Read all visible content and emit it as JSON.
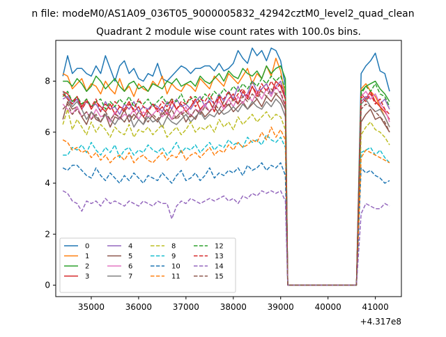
{
  "figure": {
    "suptitle": "n file: modeM0/AS1A09_036T05_9000005832_42942cztM0_level2_quad_clean",
    "title": "Quadrant 2 module wise count rates with 100.0s bins.",
    "x_offset_label": "+4.317e8"
  },
  "chart_data": {
    "type": "line",
    "title": "Quadrant 2 module wise count rates with 100.0s bins.",
    "xlabel": "",
    "ylabel": "",
    "x_offset": 431700000,
    "xlim": [
      34250,
      41550
    ],
    "ylim": [
      -0.45,
      9.6
    ],
    "xticks": [
      35000,
      36000,
      37000,
      38000,
      39000,
      40000,
      41000
    ],
    "xtick_labels": [
      "35000",
      "36000",
      "37000",
      "38000",
      "39000",
      "40000",
      "41000"
    ],
    "yticks": [
      0,
      2,
      4,
      6,
      8
    ],
    "ytick_labels": [
      "0",
      "2",
      "4",
      "6",
      "8"
    ],
    "grid": false,
    "legend_placement": "lower-left",
    "legend_columns": 4,
    "x_start": 34400,
    "x_step": 100,
    "gap_start": 39150,
    "gap_end": 40600,
    "series": [
      {
        "name": "0",
        "color": "#1f77b4",
        "dash": "solid",
        "values": [
          8.2,
          9.0,
          8.3,
          8.5,
          8.5,
          8.3,
          8.2,
          8.6,
          8.3,
          9.0,
          8.5,
          8.0,
          8.6,
          8.8,
          8.3,
          8.5,
          8.1,
          8.0,
          8.3,
          8.2,
          8.7,
          8.1,
          8.0,
          8.2,
          8.4,
          8.6,
          8.5,
          8.3,
          8.5,
          8.5,
          8.6,
          8.6,
          8.4,
          8.7,
          8.4,
          8.5,
          8.7,
          9.2,
          8.9,
          8.7,
          9.3,
          9.0,
          9.2,
          8.8,
          9.3,
          9.2,
          8.8,
          7.8,
          0.0
        ],
        "tail": [
          8.3,
          8.6,
          8.8,
          9.1,
          8.4,
          8.3,
          7.6
        ]
      },
      {
        "name": "1",
        "color": "#ff7f0e",
        "dash": "solid",
        "values": [
          8.3,
          8.2,
          7.7,
          7.9,
          8.1,
          7.6,
          7.9,
          7.8,
          7.5,
          8.0,
          7.7,
          7.5,
          8.1,
          7.6,
          7.8,
          7.4,
          7.9,
          7.7,
          7.6,
          8.0,
          7.8,
          8.2,
          7.5,
          7.9,
          7.7,
          7.6,
          7.9,
          7.8,
          7.6,
          8.1,
          7.9,
          7.7,
          8.2,
          8.0,
          7.8,
          8.3,
          8.1,
          7.9,
          8.2,
          8.5,
          7.9,
          8.3,
          8.1,
          8.6,
          8.2,
          8.9,
          8.4,
          7.4,
          0.0
        ],
        "tail": [
          7.7,
          7.9,
          7.6,
          7.4,
          7.0,
          6.6,
          6.2
        ]
      },
      {
        "name": "2",
        "color": "#2ca02c",
        "dash": "solid",
        "values": [
          8.0,
          8.0,
          7.8,
          8.1,
          7.9,
          7.6,
          7.8,
          8.2,
          8.0,
          7.7,
          7.9,
          8.1,
          7.8,
          7.6,
          7.9,
          8.0,
          7.7,
          7.8,
          7.6,
          7.9,
          7.8,
          7.7,
          8.0,
          7.9,
          8.1,
          7.8,
          7.9,
          8.0,
          7.8,
          8.2,
          8.0,
          7.9,
          8.1,
          8.3,
          8.0,
          8.4,
          8.2,
          8.1,
          8.5,
          8.3,
          8.2,
          8.4,
          8.1,
          8.6,
          8.3,
          8.5,
          8.6,
          8.1,
          0.0
        ],
        "tail": [
          7.6,
          7.8,
          7.9,
          8.0,
          7.7,
          7.5,
          7.2
        ]
      },
      {
        "name": "3",
        "color": "#d62728",
        "dash": "solid",
        "values": [
          7.6,
          7.5,
          7.2,
          7.4,
          7.0,
          7.3,
          6.9,
          7.2,
          7.0,
          6.8,
          7.1,
          6.7,
          7.0,
          6.9,
          7.2,
          6.8,
          7.0,
          6.6,
          6.9,
          7.1,
          6.8,
          7.0,
          6.7,
          7.2,
          6.9,
          7.1,
          6.8,
          7.0,
          7.3,
          6.9,
          7.1,
          7.2,
          6.8,
          7.4,
          7.0,
          7.3,
          7.5,
          7.1,
          7.6,
          7.3,
          7.8,
          7.4,
          7.7,
          7.9,
          7.5,
          8.0,
          7.8,
          7.3,
          0.0
        ],
        "tail": [
          7.5,
          7.3,
          7.6,
          7.2,
          7.0,
          6.8,
          6.5
        ]
      },
      {
        "name": "4",
        "color": "#9467bd",
        "dash": "solid",
        "values": [
          7.3,
          7.4,
          7.1,
          7.3,
          6.9,
          7.2,
          7.0,
          7.1,
          6.8,
          7.2,
          6.9,
          7.0,
          6.7,
          7.1,
          6.9,
          7.2,
          6.8,
          7.0,
          6.9,
          7.1,
          7.0,
          6.8,
          7.2,
          6.9,
          7.3,
          7.0,
          7.1,
          6.9,
          7.2,
          7.4,
          7.0,
          7.3,
          7.1,
          7.5,
          7.2,
          7.6,
          7.3,
          7.8,
          7.4,
          7.5,
          8.0,
          7.6,
          7.7,
          7.9,
          7.5,
          7.8,
          8.0,
          7.4,
          0.0
        ],
        "tail": [
          7.2,
          7.4,
          7.3,
          7.5,
          7.1,
          7.3,
          6.9
        ]
      },
      {
        "name": "5",
        "color": "#8c564b",
        "dash": "solid",
        "values": [
          6.5,
          7.2,
          6.9,
          7.0,
          6.6,
          6.3,
          6.8,
          6.5,
          6.4,
          6.7,
          6.2,
          6.6,
          6.5,
          6.9,
          6.4,
          6.7,
          6.5,
          6.3,
          6.8,
          6.6,
          6.4,
          6.7,
          6.9,
          6.5,
          6.6,
          6.8,
          6.4,
          6.7,
          6.5,
          6.9,
          6.6,
          6.8,
          7.0,
          6.7,
          6.9,
          7.1,
          6.8,
          7.0,
          7.2,
          6.9,
          7.1,
          7.3,
          7.0,
          7.4,
          7.2,
          7.5,
          7.3,
          6.9,
          0.0
        ],
        "tail": [
          6.4,
          6.7,
          6.9,
          6.5,
          6.6,
          6.3,
          6.0
        ]
      },
      {
        "name": "6",
        "color": "#e377c2",
        "dash": "solid",
        "values": [
          7.1,
          6.9,
          6.7,
          7.0,
          6.6,
          6.8,
          6.5,
          6.9,
          6.6,
          6.7,
          6.4,
          6.8,
          6.5,
          6.7,
          6.6,
          6.9,
          6.5,
          6.8,
          6.6,
          6.7,
          6.9,
          6.6,
          6.8,
          6.5,
          6.9,
          6.7,
          7.0,
          6.6,
          6.9,
          6.8,
          7.1,
          6.8,
          7.0,
          7.2,
          6.9,
          7.3,
          7.0,
          7.4,
          7.1,
          7.5,
          7.2,
          7.6,
          7.3,
          7.7,
          7.4,
          7.8,
          7.5,
          7.0,
          0.0
        ],
        "tail": [
          7.4,
          7.6,
          7.3,
          7.5,
          7.1,
          6.9,
          6.4
        ]
      },
      {
        "name": "7",
        "color": "#7f7f7f",
        "dash": "solid",
        "values": [
          7.6,
          7.3,
          7.0,
          7.2,
          6.9,
          6.5,
          6.8,
          6.6,
          6.4,
          6.7,
          6.5,
          6.3,
          6.6,
          6.4,
          6.7,
          6.2,
          6.5,
          6.3,
          6.6,
          6.4,
          6.5,
          6.2,
          6.6,
          6.4,
          6.3,
          6.5,
          6.7,
          6.4,
          6.6,
          6.8,
          6.5,
          6.7,
          6.6,
          6.9,
          6.7,
          6.8,
          7.0,
          6.8,
          7.1,
          6.9,
          7.2,
          7.0,
          6.9,
          7.2,
          7.0,
          7.3,
          7.1,
          6.6,
          0.0
        ],
        "tail": [
          7.1,
          7.3,
          7.0,
          6.8,
          6.9,
          6.6,
          6.2
        ]
      },
      {
        "name": "8",
        "color": "#bcbd22",
        "dash": "dashed",
        "values": [
          6.3,
          6.9,
          6.1,
          6.5,
          6.2,
          5.9,
          6.4,
          6.0,
          6.3,
          6.1,
          5.8,
          6.2,
          6.0,
          5.9,
          6.3,
          5.8,
          6.1,
          6.0,
          6.2,
          5.9,
          6.1,
          6.3,
          5.8,
          6.0,
          6.2,
          5.9,
          6.1,
          6.4,
          6.0,
          6.2,
          6.1,
          6.3,
          6.0,
          6.5,
          6.2,
          6.4,
          6.1,
          6.6,
          6.3,
          6.5,
          6.7,
          6.4,
          6.6,
          6.8,
          6.5,
          6.7,
          6.6,
          6.1,
          0.0
        ],
        "tail": [
          5.9,
          6.2,
          6.4,
          6.1,
          6.0,
          5.8,
          5.5
        ]
      },
      {
        "name": "9",
        "color": "#17becf",
        "dash": "dashed",
        "values": [
          5.1,
          5.1,
          5.4,
          5.3,
          5.5,
          5.2,
          5.6,
          5.3,
          5.1,
          5.4,
          5.2,
          5.5,
          5.0,
          5.3,
          5.4,
          5.1,
          5.3,
          5.2,
          5.5,
          5.3,
          5.2,
          5.4,
          5.1,
          5.3,
          5.6,
          5.2,
          5.4,
          5.3,
          5.5,
          5.2,
          5.4,
          5.6,
          5.3,
          5.5,
          5.4,
          5.7,
          5.5,
          5.6,
          5.4,
          5.8,
          5.6,
          5.7,
          5.5,
          5.9,
          5.7,
          5.6,
          5.8,
          5.4,
          0.0
        ],
        "tail": [
          5.2,
          5.3,
          5.4,
          5.1,
          5.3,
          5.0,
          4.8
        ]
      },
      {
        "name": "10",
        "color": "#1f77b4",
        "dash": "dashed",
        "values": [
          4.6,
          4.5,
          4.7,
          4.7,
          4.5,
          4.3,
          4.2,
          4.6,
          4.3,
          4.1,
          4.4,
          4.2,
          4.0,
          4.3,
          4.1,
          4.4,
          4.2,
          4.0,
          4.3,
          4.2,
          4.1,
          4.4,
          4.2,
          4.0,
          4.3,
          4.5,
          4.1,
          4.2,
          4.4,
          4.1,
          4.3,
          4.6,
          4.2,
          4.4,
          4.3,
          4.5,
          4.4,
          4.6,
          4.3,
          4.7,
          4.5,
          4.6,
          4.8,
          4.5,
          4.7,
          4.6,
          4.8,
          4.3,
          0.0
        ],
        "tail": [
          4.6,
          4.4,
          4.5,
          4.3,
          4.2,
          4.0,
          4.1
        ]
      },
      {
        "name": "11",
        "color": "#ff7f0e",
        "dash": "dashed",
        "values": [
          5.7,
          5.6,
          5.3,
          5.4,
          5.2,
          5.3,
          5.0,
          5.2,
          4.9,
          5.1,
          4.8,
          5.0,
          5.1,
          4.9,
          5.2,
          4.8,
          5.0,
          5.1,
          4.9,
          4.8,
          5.0,
          5.2,
          4.9,
          5.1,
          5.0,
          5.3,
          4.9,
          5.1,
          5.2,
          5.0,
          5.2,
          5.4,
          5.1,
          5.3,
          5.2,
          5.5,
          5.3,
          5.6,
          5.4,
          5.5,
          5.7,
          5.6,
          6.0,
          5.7,
          6.2,
          5.8,
          6.1,
          5.7,
          0.0
        ],
        "tail": [
          5.0,
          5.3,
          5.2,
          5.1,
          5.0,
          4.9,
          4.8
        ]
      },
      {
        "name": "12",
        "color": "#2ca02c",
        "dash": "dashed",
        "values": [
          7.4,
          7.6,
          7.2,
          7.4,
          7.1,
          7.3,
          7.0,
          7.2,
          7.3,
          6.9,
          7.2,
          7.0,
          7.3,
          7.1,
          7.4,
          7.0,
          7.2,
          7.1,
          7.3,
          7.0,
          7.2,
          7.4,
          7.1,
          7.3,
          7.2,
          7.5,
          7.1,
          7.3,
          7.4,
          7.2,
          7.5,
          7.3,
          7.6,
          7.4,
          7.7,
          7.5,
          7.8,
          7.6,
          7.9,
          7.7,
          8.0,
          7.8,
          8.1,
          7.9,
          8.2,
          8.0,
          8.2,
          7.7,
          0.0
        ],
        "tail": [
          7.5,
          7.8,
          7.6,
          7.9,
          7.5,
          7.4,
          7.0
        ]
      },
      {
        "name": "13",
        "color": "#d62728",
        "dash": "dashed",
        "values": [
          7.5,
          7.3,
          7.1,
          7.4,
          6.9,
          7.2,
          7.0,
          7.3,
          6.8,
          7.1,
          6.9,
          7.2,
          7.0,
          6.8,
          7.1,
          6.9,
          7.3,
          7.0,
          6.8,
          7.1,
          6.9,
          7.2,
          7.0,
          7.3,
          6.9,
          7.2,
          7.1,
          7.4,
          7.0,
          7.3,
          7.2,
          7.5,
          7.1,
          7.4,
          7.3,
          7.6,
          7.2,
          7.5,
          7.7,
          7.4,
          7.8,
          7.5,
          7.9,
          7.6,
          8.0,
          7.7,
          7.9,
          7.3,
          0.0
        ],
        "tail": [
          7.4,
          7.2,
          7.5,
          7.1,
          7.3,
          6.9,
          6.7
        ]
      },
      {
        "name": "14",
        "color": "#9467bd",
        "dash": "dashed",
        "values": [
          3.7,
          3.6,
          3.3,
          3.2,
          2.9,
          3.3,
          3.2,
          3.3,
          3.1,
          3.4,
          3.2,
          3.3,
          3.2,
          3.1,
          3.3,
          3.2,
          3.1,
          3.3,
          3.2,
          3.1,
          3.3,
          3.2,
          3.2,
          2.6,
          3.1,
          3.3,
          3.2,
          3.4,
          3.3,
          3.2,
          3.3,
          3.4,
          3.3,
          3.4,
          3.5,
          3.3,
          3.4,
          3.2,
          3.5,
          3.4,
          3.6,
          3.5,
          3.7,
          3.6,
          3.7,
          3.6,
          3.7,
          3.3,
          0.0
        ],
        "tail": [
          2.8,
          3.2,
          3.1,
          3.0,
          3.0,
          3.2,
          3.1
        ]
      },
      {
        "name": "15",
        "color": "#8c564b",
        "dash": "dashed",
        "values": [
          6.9,
          7.1,
          6.7,
          6.9,
          6.6,
          6.8,
          6.5,
          6.7,
          6.4,
          6.8,
          6.5,
          6.7,
          6.6,
          6.4,
          6.7,
          6.5,
          6.8,
          6.6,
          6.4,
          6.7,
          6.5,
          6.8,
          6.6,
          6.9,
          6.5,
          6.7,
          6.8,
          6.6,
          6.9,
          6.7,
          7.0,
          6.8,
          7.1,
          6.9,
          7.2,
          7.0,
          7.3,
          7.1,
          7.4,
          7.2,
          7.5,
          7.3,
          7.6,
          7.4,
          7.7,
          7.5,
          7.6,
          7.0,
          0.0
        ],
        "tail": [
          6.9,
          7.1,
          7.0,
          6.8,
          6.6,
          6.4,
          6.0
        ]
      }
    ]
  }
}
